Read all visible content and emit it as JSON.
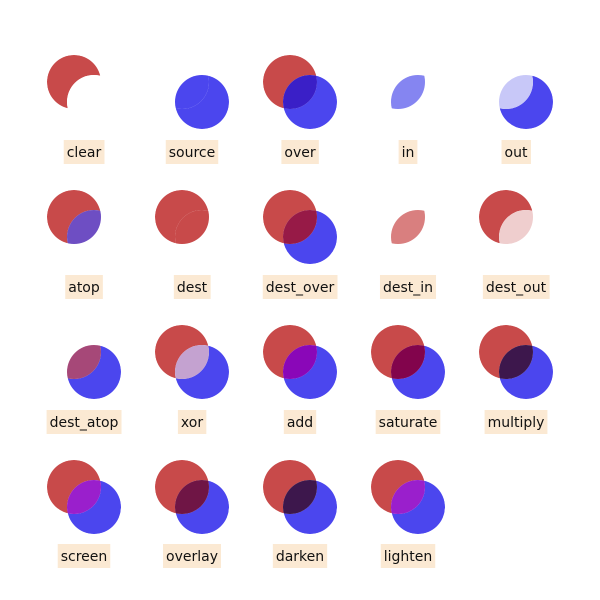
{
  "colors": {
    "source_circle": "#4b46ee",
    "dest_circle": "#c84a4a",
    "label_background": "#fbe9d3",
    "canvas_background": "#ffffff"
  },
  "operators": [
    {
      "label": "clear",
      "overlap_fill": "#ffffff"
    },
    {
      "label": "source",
      "overlap_fill": "#4b46ee"
    },
    {
      "label": "over",
      "overlap_fill": "#3a1fc7"
    },
    {
      "label": "in",
      "overlap_fill": "#8585f1"
    },
    {
      "label": "out",
      "overlap_fill": "#c8c8f8"
    },
    {
      "label": "atop",
      "overlap_fill": "#6e4ec3"
    },
    {
      "label": "dest",
      "overlap_fill": "#c84a4a"
    },
    {
      "label": "dest_over",
      "overlap_fill": "#971a47"
    },
    {
      "label": "dest_in",
      "overlap_fill": "#d97f7f"
    },
    {
      "label": "dest_out",
      "overlap_fill": "#efcece"
    },
    {
      "label": "dest_atop",
      "overlap_fill": "#a64878"
    },
    {
      "label": "xor",
      "overlap_fill": "#c4a2d0"
    },
    {
      "label": "add",
      "overlap_fill": "#8a07b8"
    },
    {
      "label": "saturate",
      "overlap_fill": "#82044c"
    },
    {
      "label": "multiply",
      "overlap_fill": "#3d174c"
    },
    {
      "label": "screen",
      "overlap_fill": "#9a1fcc"
    },
    {
      "label": "overlay",
      "overlap_fill": "#6f1545"
    },
    {
      "label": "darken",
      "overlap_fill": "#3d174c"
    },
    {
      "label": "lighten",
      "overlap_fill": "#9a1fcc"
    }
  ]
}
